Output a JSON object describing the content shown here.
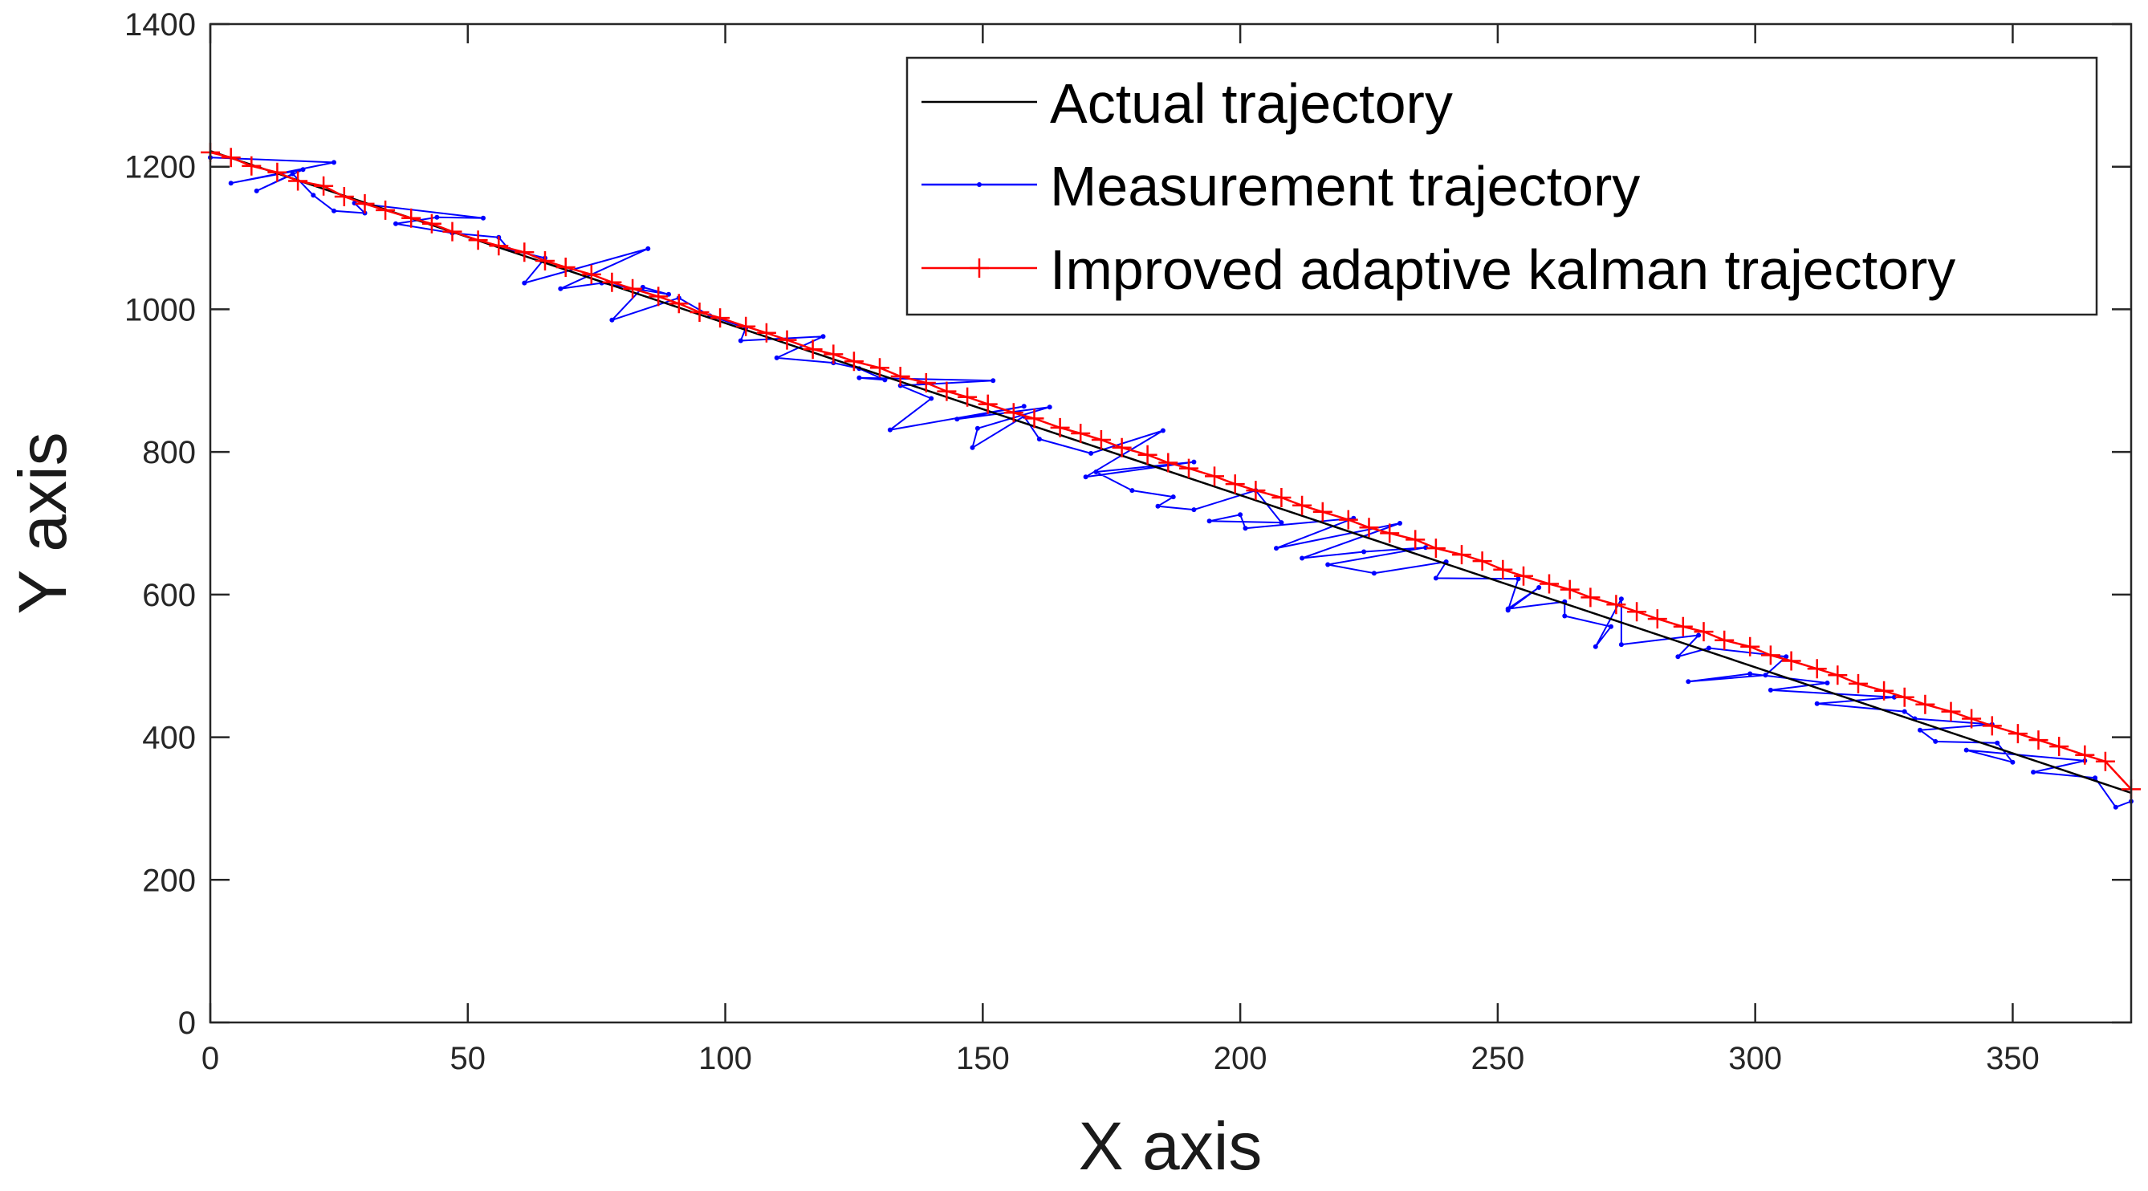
{
  "chart_data": {
    "type": "line",
    "title": "",
    "xlabel": "X axis",
    "ylabel": "Y axis",
    "xlim": [
      0,
      373
    ],
    "ylim": [
      0,
      1400
    ],
    "x_ticks": [
      "0",
      "50",
      "100",
      "150",
      "200",
      "250",
      "300",
      "350"
    ],
    "y_ticks": [
      "0",
      "200",
      "400",
      "600",
      "800",
      "1000",
      "1200",
      "1400"
    ],
    "grid": false,
    "legend_position": "top-right",
    "series": [
      {
        "name": "Actual trajectory",
        "color": "#000000",
        "marker": "none",
        "x": [
          0,
          373
        ],
        "y": [
          1222,
          322
        ]
      },
      {
        "name": "Measurement trajectory",
        "color": "#0000ff",
        "marker": "dot",
        "x": [
          0,
          24,
          4,
          18,
          9,
          16,
          20,
          24,
          30,
          28,
          53,
          44,
          36,
          47,
          56,
          58,
          65,
          61,
          85,
          68,
          76,
          89,
          84,
          78,
          91,
          97,
          104,
          103,
          119,
          110,
          121,
          126,
          131,
          126,
          152,
          134,
          140,
          132,
          158,
          145,
          163,
          149,
          148,
          158,
          161,
          171,
          185,
          170,
          191,
          172,
          179,
          187,
          184,
          191,
          203,
          208,
          194,
          200,
          201,
          222,
          207,
          231,
          212,
          224,
          236,
          217,
          226,
          240,
          238,
          254,
          252,
          258,
          252,
          263,
          263,
          272,
          269,
          274,
          274,
          289,
          285,
          291,
          306,
          302,
          287,
          299,
          314,
          303,
          327,
          312,
          329,
          331,
          346,
          332,
          335,
          347,
          350,
          341,
          364,
          354,
          366,
          370,
          373
        ],
        "y": [
          1213,
          1206,
          1177,
          1196,
          1166,
          1190,
          1160,
          1138,
          1135,
          1149,
          1128,
          1129,
          1120,
          1107,
          1101,
          1084,
          1072,
          1037,
          1085,
          1029,
          1037,
          1021,
          1031,
          985,
          1016,
          991,
          974,
          956,
          962,
          932,
          925,
          917,
          901,
          904,
          900,
          893,
          875,
          831,
          864,
          846,
          863,
          833,
          806,
          850,
          818,
          798,
          830,
          765,
          786,
          772,
          746,
          737,
          724,
          719,
          746,
          701,
          703,
          712,
          693,
          707,
          665,
          700,
          651,
          660,
          666,
          642,
          630,
          646,
          623,
          622,
          578,
          610,
          580,
          590,
          570,
          555,
          527,
          594,
          530,
          543,
          513,
          525,
          513,
          487,
          478,
          489,
          476,
          466,
          456,
          447,
          436,
          426,
          418,
          410,
          394,
          392,
          365,
          382,
          367,
          351,
          343,
          302,
          310
        ]
      },
      {
        "name": "Improved adaptive kalman trajectory",
        "color": "#ff0000",
        "marker": "plus",
        "x": [
          0,
          4,
          8,
          13,
          17,
          22,
          26,
          30,
          34,
          39,
          43,
          47,
          52,
          56,
          61,
          65,
          69,
          74,
          78,
          82,
          87,
          91,
          95,
          99,
          104,
          108,
          112,
          117,
          121,
          125,
          130,
          134,
          139,
          143,
          147,
          151,
          156,
          160,
          165,
          169,
          173,
          177,
          182,
          186,
          190,
          195,
          199,
          203,
          208,
          212,
          216,
          221,
          225,
          229,
          234,
          238,
          243,
          247,
          251,
          255,
          260,
          264,
          268,
          273,
          277,
          281,
          286,
          290,
          294,
          299,
          303,
          307,
          312,
          316,
          320,
          325,
          329,
          333,
          338,
          342,
          346,
          351,
          355,
          359,
          364,
          368,
          373
        ],
        "y": [
          1220,
          1213,
          1201,
          1192,
          1180,
          1173,
          1158,
          1148,
          1139,
          1128,
          1120,
          1109,
          1097,
          1089,
          1080,
          1068,
          1059,
          1049,
          1038,
          1029,
          1018,
          1008,
          996,
          988,
          976,
          967,
          957,
          944,
          937,
          927,
          918,
          906,
          897,
          885,
          877,
          867,
          855,
          847,
          834,
          826,
          817,
          806,
          796,
          785,
          777,
          766,
          755,
          746,
          736,
          725,
          716,
          705,
          694,
          686,
          677,
          665,
          656,
          647,
          635,
          626,
          615,
          607,
          596,
          586,
          576,
          566,
          555,
          548,
          536,
          527,
          515,
          507,
          496,
          487,
          475,
          465,
          456,
          446,
          436,
          426,
          416,
          405,
          396,
          387,
          375,
          366,
          327
        ]
      }
    ]
  }
}
